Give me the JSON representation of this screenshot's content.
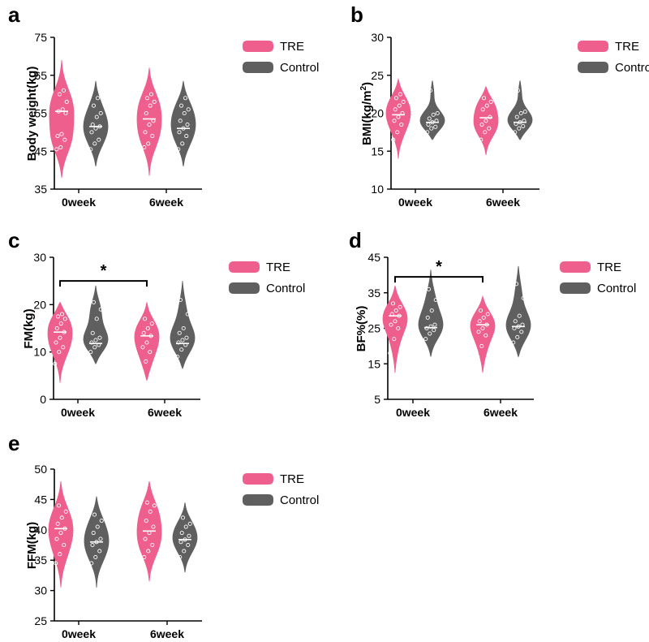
{
  "colors": {
    "tre": "#ef5f8d",
    "control": "#5f5f5f",
    "median": "#ffffff",
    "axis": "#000000"
  },
  "chart_data": [
    {
      "type": "violin",
      "panel": "a",
      "ylabel": "Body weight(kg)",
      "ylim": [
        35,
        75
      ],
      "yticks": [
        35,
        45,
        55,
        65,
        75
      ],
      "categories": [
        "0week",
        "6week"
      ],
      "legend": [
        "TRE",
        "Control"
      ],
      "series": [
        {
          "name": "TRE",
          "violins": [
            {
              "category": "0week",
              "min": 38,
              "max": 69,
              "median": 55.5,
              "points": [
                45.5,
                46,
                48,
                49,
                49.5,
                55,
                55.5,
                56,
                58,
                60,
                61
              ]
            },
            {
              "category": "6week",
              "min": 38.5,
              "max": 67,
              "median": 53.5,
              "points": [
                46,
                47,
                49,
                50,
                52,
                53,
                55,
                57,
                58,
                59,
                60
              ]
            }
          ]
        },
        {
          "name": "Control",
          "violins": [
            {
              "category": "0week",
              "min": 41,
              "max": 63.5,
              "median": 51.5,
              "points": [
                45.5,
                47,
                48,
                50,
                51,
                51.5,
                52,
                54,
                55,
                57,
                59
              ]
            },
            {
              "category": "6week",
              "min": 41,
              "max": 63.5,
              "median": 51,
              "points": [
                45.5,
                47,
                49,
                50,
                51,
                52,
                53,
                55,
                56,
                57,
                59
              ]
            }
          ]
        }
      ],
      "significance": []
    },
    {
      "type": "violin",
      "panel": "b",
      "ylabel": "BMI(kg/m",
      "ylabel_sup": "2",
      "ylabel_end": ")",
      "ylim": [
        10,
        30
      ],
      "yticks": [
        10,
        15,
        20,
        25,
        30
      ],
      "categories": [
        "0week",
        "6week"
      ],
      "legend": [
        "TRE",
        "Control"
      ],
      "series": [
        {
          "name": "TRE",
          "violins": [
            {
              "category": "0week",
              "min": 14,
              "max": 24.5,
              "median": 19.8,
              "points": [
                16.5,
                17.5,
                18.5,
                19,
                19.5,
                20,
                20.5,
                21,
                21.5,
                22,
                22.5
              ]
            },
            {
              "category": "6week",
              "min": 14.5,
              "max": 23.5,
              "median": 19.4,
              "points": [
                16.5,
                17.5,
                18,
                18.5,
                19,
                19.5,
                20.5,
                21,
                21.5,
                22
              ]
            }
          ]
        },
        {
          "name": "Control",
          "violins": [
            {
              "category": "0week",
              "min": 16.5,
              "max": 24.3,
              "median": 18.8,
              "points": [
                17.5,
                18,
                18.2,
                18.5,
                18.8,
                19,
                19.3,
                19.8,
                20,
                23
              ]
            },
            {
              "category": "6week",
              "min": 16.5,
              "max": 24.3,
              "median": 18.8,
              "points": [
                17.5,
                18,
                18.3,
                18.6,
                18.8,
                19,
                19.5,
                20,
                20.2,
                23
              ]
            }
          ]
        }
      ],
      "significance": []
    },
    {
      "type": "violin",
      "panel": "c",
      "ylabel": "FM(kg)",
      "ylim": [
        0,
        30
      ],
      "yticks": [
        0,
        10,
        20,
        30
      ],
      "categories": [
        "0week",
        "6week"
      ],
      "legend": [
        "TRE",
        "Control"
      ],
      "series": [
        {
          "name": "TRE",
          "violins": [
            {
              "category": "0week",
              "min": 3.5,
              "max": 20.5,
              "median": 14.2,
              "points": [
                7.5,
                10,
                11,
                12,
                13,
                14.2,
                15,
                16,
                17,
                17.5,
                18
              ]
            },
            {
              "category": "6week",
              "min": 4,
              "max": 20.5,
              "median": 13.4,
              "points": [
                6,
                8,
                10,
                11,
                12,
                13.4,
                14,
                15,
                16,
                17
              ]
            }
          ]
        },
        {
          "name": "Control",
          "violins": [
            {
              "category": "0week",
              "min": 7.5,
              "max": 24,
              "median": 11.8,
              "points": [
                10,
                11,
                11.5,
                12,
                12.5,
                13,
                14,
                17,
                19,
                20.5
              ]
            },
            {
              "category": "6week",
              "min": 6.5,
              "max": 25,
              "median": 11.8,
              "points": [
                9,
                10.5,
                11.5,
                12,
                12.5,
                13,
                14,
                15,
                18,
                21
              ]
            }
          ]
        }
      ],
      "significance": [
        {
          "label": "*",
          "from": "0week",
          "to": "6week",
          "y": 25
        }
      ]
    },
    {
      "type": "violin",
      "panel": "d",
      "ylabel": "BF%(%)",
      "ylim": [
        5,
        45
      ],
      "yticks": [
        5,
        15,
        25,
        35,
        45
      ],
      "categories": [
        "0week",
        "6week"
      ],
      "legend": [
        "TRE",
        "Control"
      ],
      "series": [
        {
          "name": "TRE",
          "violins": [
            {
              "category": "0week",
              "min": 12.5,
              "max": 37,
              "median": 28.5,
              "points": [
                18,
                22,
                25,
                26,
                27,
                28.5,
                29,
                30,
                31,
                32
              ]
            },
            {
              "category": "6week",
              "min": 12.5,
              "max": 34,
              "median": 26,
              "points": [
                17,
                20,
                23,
                24,
                25,
                26,
                27,
                28,
                29,
                30
              ]
            }
          ]
        },
        {
          "name": "Control",
          "violins": [
            {
              "category": "0week",
              "min": 17,
              "max": 41.5,
              "median": 25.2,
              "points": [
                22,
                23.5,
                24.5,
                25,
                25.5,
                26,
                28,
                30,
                33,
                36
              ]
            },
            {
              "category": "6week",
              "min": 17,
              "max": 42.5,
              "median": 25.5,
              "points": [
                21,
                22.5,
                24,
                25,
                25.5,
                26,
                27,
                28.5,
                33.5,
                37.5
              ]
            }
          ]
        }
      ],
      "significance": [
        {
          "label": "*",
          "from": "0week",
          "to": "6week",
          "y": 39.5
        }
      ]
    },
    {
      "type": "violin",
      "panel": "e",
      "ylabel": "FFM(kg)",
      "ylim": [
        25,
        50
      ],
      "yticks": [
        25,
        30,
        35,
        40,
        45,
        50
      ],
      "categories": [
        "0week",
        "6week"
      ],
      "legend": [
        "TRE",
        "Control"
      ],
      "series": [
        {
          "name": "TRE",
          "violins": [
            {
              "category": "0week",
              "min": 30.5,
              "max": 48,
              "median": 40.2,
              "points": [
                34.5,
                36,
                37.5,
                38.5,
                39.5,
                40.2,
                41,
                42,
                43,
                44
              ]
            },
            {
              "category": "6week",
              "min": 31.5,
              "max": 48,
              "median": 39.8,
              "points": [
                35.5,
                36.5,
                37.5,
                38.5,
                39.5,
                40.5,
                41.5,
                43,
                44,
                44.5
              ]
            }
          ]
        },
        {
          "name": "Control",
          "violins": [
            {
              "category": "0week",
              "min": 30.5,
              "max": 45.5,
              "median": 38,
              "points": [
                34.5,
                35.5,
                36.5,
                37.5,
                38,
                38.5,
                39.5,
                40.5,
                41.5,
                42.5
              ]
            },
            {
              "category": "6week",
              "min": 33,
              "max": 44.5,
              "median": 38.4,
              "points": [
                35.5,
                36.5,
                37.5,
                38,
                38.4,
                39,
                39.5,
                40.5,
                41,
                42
              ]
            }
          ]
        }
      ],
      "significance": []
    }
  ]
}
